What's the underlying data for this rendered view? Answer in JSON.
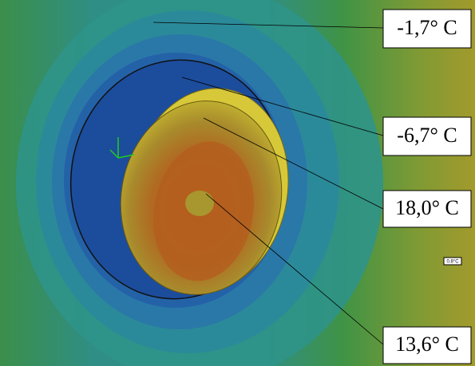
{
  "annotations": [
    {
      "label": "-1,7° C"
    },
    {
      "label": "-6,7° C"
    },
    {
      "label": "18,0° C"
    },
    {
      "label": "13,6° C"
    }
  ],
  "probe_label": "0.8°C"
}
